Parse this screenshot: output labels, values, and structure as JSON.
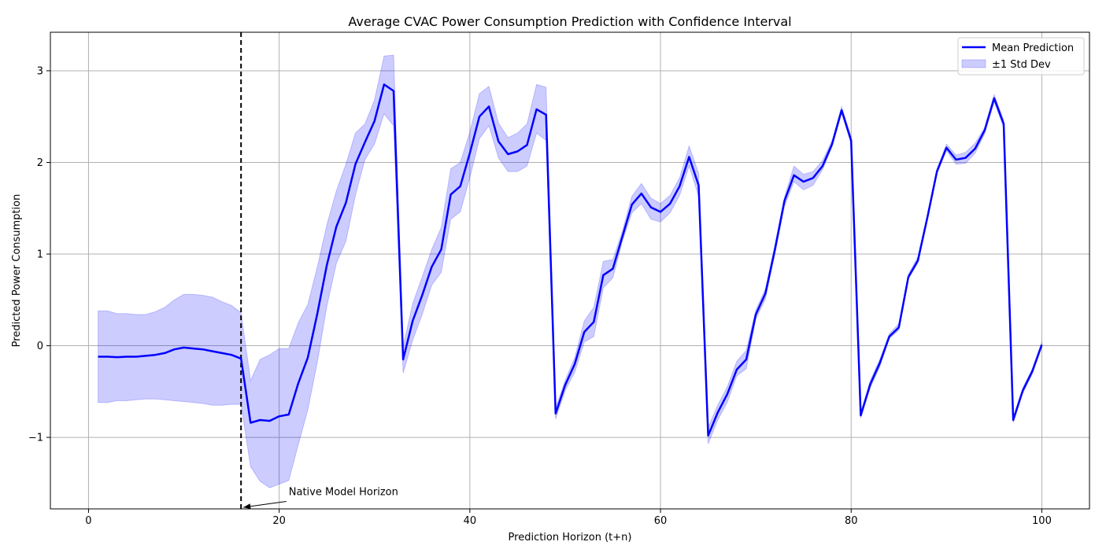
{
  "chart_data": {
    "type": "line",
    "title": "Average CVAC Power Consumption Prediction with Confidence Interval",
    "xlabel": "Prediction Horizon (t+n)",
    "ylabel": "Predicted Power Consumption",
    "xlim": [
      -4,
      105
    ],
    "ylim": [
      -1.78,
      3.42
    ],
    "x_ticks": [
      0,
      20,
      40,
      60,
      80,
      100
    ],
    "y_ticks": [
      -1,
      0,
      1,
      2,
      3
    ],
    "x_tick_labels": [
      "0",
      "20",
      "40",
      "60",
      "80",
      "100"
    ],
    "y_tick_labels": [
      "−1",
      "0",
      "1",
      "2",
      "3"
    ],
    "grid": true,
    "legend_position": "top-right",
    "colors": {
      "mean": "#0000ff",
      "band": "#0000ff",
      "vline": "#000000",
      "grid": "#b0b0b0"
    },
    "x": [
      1,
      2,
      3,
      4,
      5,
      6,
      7,
      8,
      9,
      10,
      11,
      12,
      13,
      14,
      15,
      16,
      17,
      18,
      19,
      20,
      21,
      22,
      23,
      24,
      25,
      26,
      27,
      28,
      29,
      30,
      31,
      32,
      33,
      34,
      35,
      36,
      37,
      38,
      39,
      40,
      41,
      42,
      43,
      44,
      45,
      46,
      47,
      48,
      49,
      50,
      51,
      52,
      53,
      54,
      55,
      56,
      57,
      58,
      59,
      60,
      61,
      62,
      63,
      64,
      65,
      66,
      67,
      68,
      69,
      70,
      71,
      72,
      73,
      74,
      75,
      76,
      77,
      78,
      79,
      80,
      81,
      82,
      83,
      84,
      85,
      86,
      87,
      88,
      89,
      90,
      91,
      92,
      93,
      94,
      95,
      96,
      97,
      98,
      99,
      100
    ],
    "series": [
      {
        "name": "Mean Prediction",
        "kind": "line",
        "values": [
          -0.12,
          -0.12,
          -0.125,
          -0.12,
          -0.12,
          -0.11,
          -0.1,
          -0.08,
          -0.04,
          -0.02,
          -0.03,
          -0.04,
          -0.06,
          -0.08,
          -0.1,
          -0.14,
          -0.84,
          -0.81,
          -0.82,
          -0.77,
          -0.75,
          -0.41,
          -0.13,
          0.35,
          0.88,
          1.3,
          1.56,
          1.98,
          2.22,
          2.45,
          2.85,
          2.78,
          -0.15,
          0.27,
          0.55,
          0.86,
          1.05,
          1.65,
          1.74,
          2.1,
          2.5,
          2.61,
          2.23,
          2.09,
          2.12,
          2.19,
          2.58,
          2.52,
          -0.74,
          -0.43,
          -0.2,
          0.15,
          0.26,
          0.77,
          0.84,
          1.19,
          1.54,
          1.66,
          1.51,
          1.46,
          1.55,
          1.74,
          2.06,
          1.75,
          -0.98,
          -0.73,
          -0.53,
          -0.26,
          -0.15,
          0.34,
          0.57,
          1.05,
          1.58,
          1.86,
          1.79,
          1.83,
          1.96,
          2.2,
          2.57,
          2.24,
          -0.76,
          -0.42,
          -0.19,
          0.1,
          0.2,
          0.75,
          0.93,
          1.4,
          1.9,
          2.16,
          2.03,
          2.05,
          2.15,
          2.35,
          2.7,
          2.42,
          -0.81,
          -0.49,
          -0.28,
          0.01
        ]
      },
      {
        "name": "±1 Std Dev",
        "kind": "band",
        "lower": [
          -0.62,
          -0.62,
          -0.6,
          -0.6,
          -0.59,
          -0.58,
          -0.58,
          -0.59,
          -0.6,
          -0.61,
          -0.62,
          -0.63,
          -0.65,
          -0.65,
          -0.64,
          -0.64,
          -1.32,
          -1.48,
          -1.55,
          -1.51,
          -1.47,
          -1.08,
          -0.7,
          -0.18,
          0.43,
          0.9,
          1.14,
          1.64,
          2.03,
          2.2,
          2.53,
          2.4,
          -0.3,
          0.06,
          0.34,
          0.66,
          0.8,
          1.38,
          1.46,
          1.83,
          2.26,
          2.4,
          2.05,
          1.9,
          1.9,
          1.96,
          2.32,
          2.24,
          -0.8,
          -0.49,
          -0.29,
          0.04,
          0.1,
          0.63,
          0.74,
          1.14,
          1.45,
          1.55,
          1.38,
          1.35,
          1.45,
          1.64,
          1.96,
          1.63,
          -1.07,
          -0.81,
          -0.62,
          -0.33,
          -0.25,
          0.29,
          0.51,
          1.0,
          1.52,
          1.79,
          1.7,
          1.75,
          1.92,
          2.17,
          2.54,
          2.2,
          -0.79,
          -0.46,
          -0.23,
          0.08,
          0.17,
          0.73,
          0.9,
          1.38,
          1.88,
          2.13,
          1.98,
          1.99,
          2.1,
          2.31,
          2.66,
          2.38,
          -0.84,
          -0.52,
          -0.31,
          -0.01
        ]
      },
      {
        "upper": [
          0.38,
          0.38,
          0.35,
          0.35,
          0.34,
          0.34,
          0.37,
          0.42,
          0.5,
          0.56,
          0.56,
          0.55,
          0.53,
          0.48,
          0.44,
          0.36,
          -0.38,
          -0.15,
          -0.1,
          -0.03,
          -0.03,
          0.25,
          0.45,
          0.86,
          1.32,
          1.69,
          1.98,
          2.32,
          2.42,
          2.68,
          3.16,
          3.17,
          -0.01,
          0.46,
          0.75,
          1.05,
          1.29,
          1.93,
          2.0,
          2.33,
          2.75,
          2.83,
          2.43,
          2.27,
          2.32,
          2.42,
          2.85,
          2.82,
          -0.68,
          -0.38,
          -0.13,
          0.27,
          0.42,
          0.92,
          0.94,
          1.25,
          1.63,
          1.77,
          1.61,
          1.55,
          1.64,
          1.83,
          2.18,
          1.88,
          -0.89,
          -0.65,
          -0.45,
          -0.17,
          -0.05,
          0.39,
          0.62,
          1.1,
          1.62,
          1.96,
          1.87,
          1.9,
          2.02,
          2.24,
          2.61,
          2.28,
          -0.73,
          -0.38,
          -0.15,
          0.13,
          0.24,
          0.78,
          0.97,
          1.43,
          1.93,
          2.2,
          2.08,
          2.11,
          2.21,
          2.38,
          2.74,
          2.46,
          -0.78,
          -0.46,
          -0.25,
          0.04
        ]
      }
    ],
    "vline_x": 16,
    "annotation": {
      "text": "Native Model Horizon",
      "xy": [
        16,
        -1.78
      ],
      "xytext": [
        21,
        -1.63
      ]
    }
  }
}
